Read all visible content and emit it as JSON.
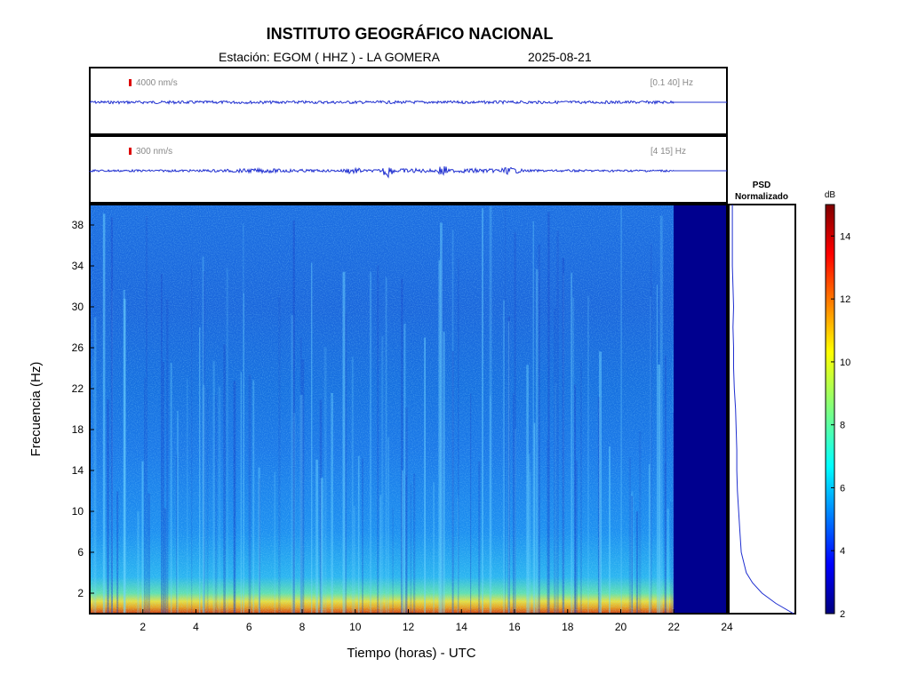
{
  "header": {
    "title": "INSTITUTO GEOGRÁFICO NACIONAL",
    "station_label": "Estación:  EGOM ( HHZ ) - LA GOMERA",
    "date": "2025-08-21"
  },
  "colors": {
    "trace": "#1f2fd0",
    "scale_bar": "#dd0000",
    "no_data": "#00008f"
  },
  "chart_data": [
    {
      "type": "line",
      "name": "seismogram-broadband",
      "amplitude_scale": "4000 nm/s",
      "filter_band": "[0.1 40] Hz",
      "x_range_hours": [
        0,
        24
      ],
      "data_end_hour": 22
    },
    {
      "type": "line",
      "name": "seismogram-filtered",
      "amplitude_scale": "300 nm/s",
      "filter_band": "[4 15] Hz",
      "x_range_hours": [
        0,
        24
      ],
      "data_end_hour": 22,
      "notable_events_hours": [
        11.2,
        13.3
      ]
    },
    {
      "type": "heatmap",
      "name": "spectrogram",
      "xlabel": "Tiempo (horas) - UTC",
      "ylabel": "Frecuencia  (Hz)",
      "xlim": [
        0,
        24
      ],
      "ylim": [
        0,
        40
      ],
      "x_ticks": [
        "2",
        "4",
        "6",
        "8",
        "10",
        "12",
        "14",
        "16",
        "18",
        "20",
        "22",
        "24"
      ],
      "y_ticks": [
        "2",
        "6",
        "10",
        "14",
        "18",
        "22",
        "26",
        "30",
        "34",
        "38"
      ],
      "data_end_hour": 22,
      "colorbar": {
        "label": "dB",
        "range": [
          2,
          15
        ],
        "ticks": [
          "2",
          "4",
          "6",
          "8",
          "10",
          "12",
          "14"
        ]
      }
    },
    {
      "type": "line",
      "name": "psd-normalized",
      "title": "PSD\nNormalizado",
      "freq_hz": [
        0,
        1,
        2,
        3,
        4,
        6,
        8,
        10,
        12,
        14,
        16,
        18,
        20,
        22,
        24,
        26,
        28,
        30,
        32,
        34,
        36,
        38,
        40
      ],
      "value_norm": [
        1.0,
        0.72,
        0.5,
        0.35,
        0.25,
        0.17,
        0.15,
        0.13,
        0.11,
        0.1,
        0.1,
        0.09,
        0.08,
        0.06,
        0.05,
        0.05,
        0.04,
        0.05,
        0.04,
        0.03,
        0.03,
        0.03,
        0.03
      ]
    }
  ]
}
